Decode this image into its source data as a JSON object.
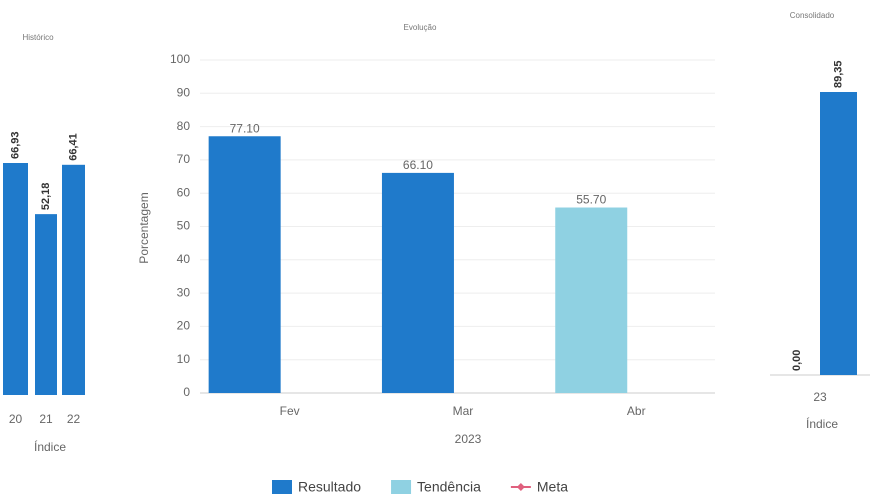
{
  "chart_data": [
    {
      "type": "bar",
      "title": "Histórico",
      "xlabel": "Índice",
      "categories": [
        "20",
        "21",
        "22"
      ],
      "values": [
        66.93,
        52.18,
        66.41
      ],
      "value_labels": [
        "66,93",
        "52,18",
        "66,41"
      ],
      "color": "#1f7acb"
    },
    {
      "type": "bar",
      "title": "Evolução",
      "xlabel": "2023",
      "ylabel": "Porcentagem",
      "categories": [
        "Fev",
        "Mar",
        "Abr"
      ],
      "series": [
        {
          "name": "Resultado",
          "color": "#1f7acb",
          "values": [
            77.1,
            66.1,
            null
          ],
          "value_labels": [
            "77.10",
            "66.10",
            null
          ]
        },
        {
          "name": "Tendência",
          "color": "#8fd1e2",
          "values": [
            null,
            null,
            55.7
          ],
          "value_labels": [
            null,
            null,
            "55.70"
          ]
        },
        {
          "name": "Meta",
          "color": "#e0607e",
          "values": [
            null,
            null,
            null
          ]
        }
      ],
      "ylim": [
        0,
        100
      ],
      "yticks": [
        0,
        10,
        20,
        30,
        40,
        50,
        60,
        70,
        80,
        90,
        100
      ],
      "grid": true
    },
    {
      "type": "bar",
      "title": "Consolidado",
      "xlabel": "Índice",
      "categories": [
        "23"
      ],
      "series": [
        {
          "color": "#1f7acb",
          "values": [
            0
          ],
          "value_labels": [
            "0,00"
          ]
        },
        {
          "color": "#1f7acb",
          "values": [
            89.35
          ],
          "value_labels": [
            "89,35"
          ]
        }
      ]
    }
  ]
}
